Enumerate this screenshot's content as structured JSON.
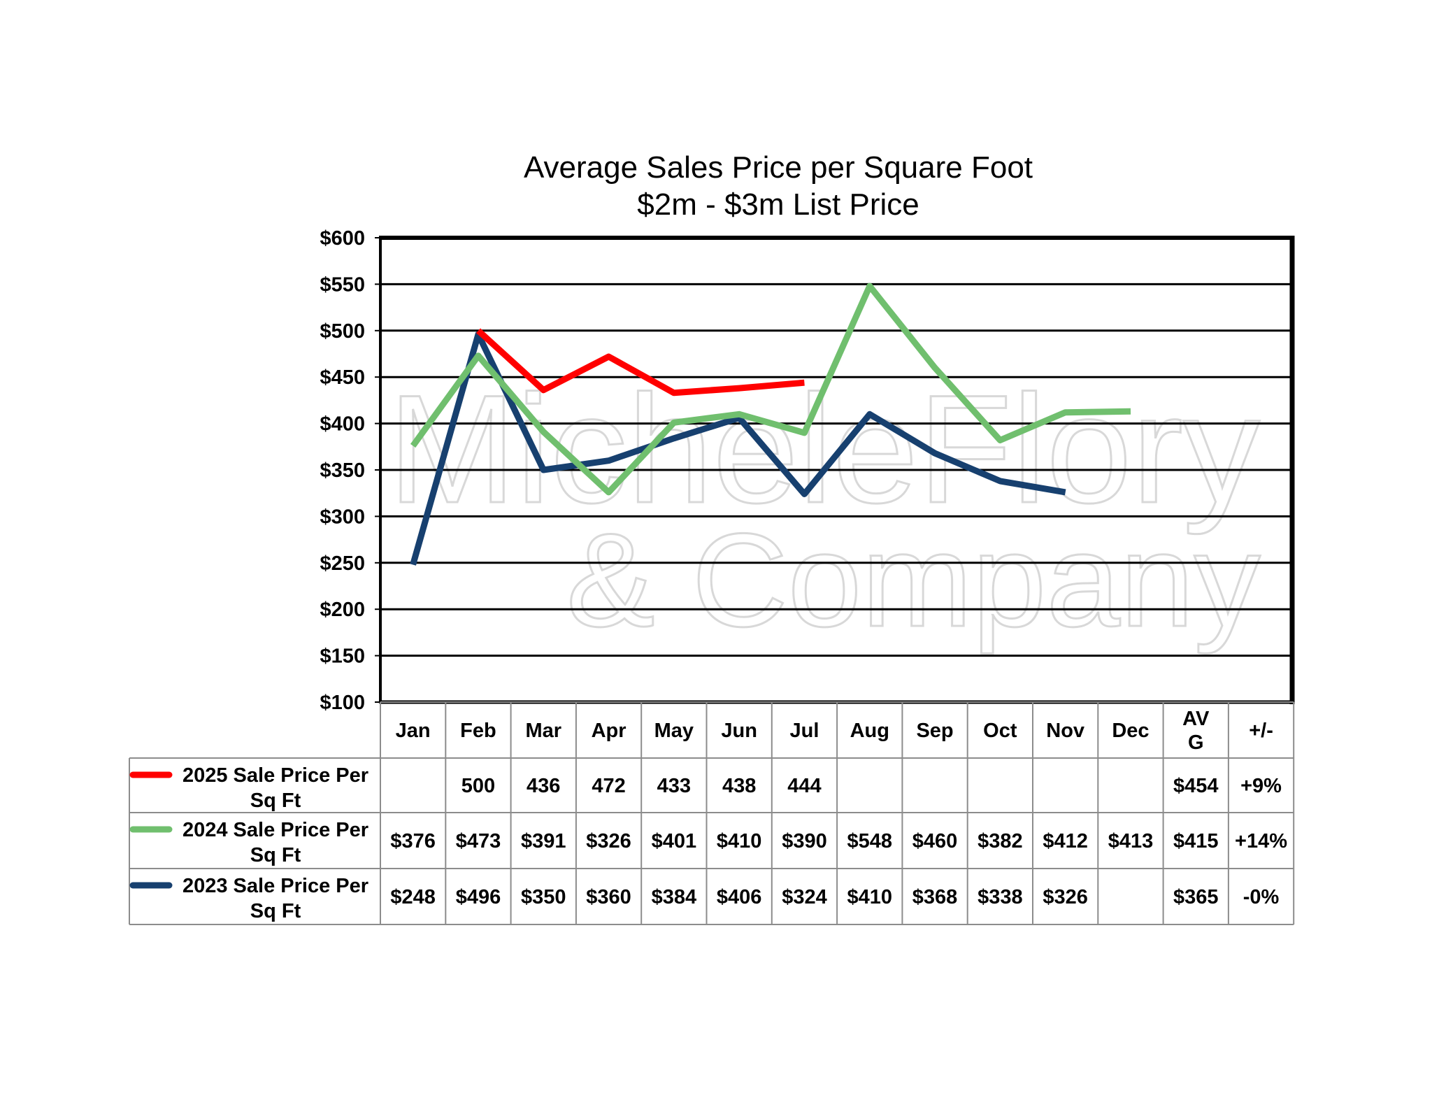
{
  "watermark": {
    "line1": "MicheleFlory",
    "line2": "& Company"
  },
  "chart_data": {
    "type": "line",
    "title": [
      "Average Sales Price per Square Foot",
      "$2m - $3m List Price"
    ],
    "ylim": [
      100,
      600
    ],
    "ytick_step": 50,
    "ytick_labels": [
      "$100",
      "$150",
      "$200",
      "$250",
      "$300",
      "$350",
      "$400",
      "$450",
      "$500",
      "$550",
      "$600"
    ],
    "grid": true,
    "categories": [
      "Jan",
      "Feb",
      "Mar",
      "Apr",
      "May",
      "Jun",
      "Jul",
      "Aug",
      "Sep",
      "Oct",
      "Nov",
      "Dec"
    ],
    "table_header_extra": [
      "AV\nG",
      "+/-"
    ],
    "series": [
      {
        "name": "2025 Sale Price Per Sq Ft",
        "color": "#ff0000",
        "values": [
          null,
          500,
          436,
          472,
          433,
          438,
          444,
          null,
          null,
          null,
          null,
          null
        ],
        "cells": [
          "",
          "500",
          "436",
          "472",
          "433",
          "438",
          "444",
          "",
          "",
          "",
          "",
          ""
        ],
        "avg": "$454",
        "change": "+9%"
      },
      {
        "name": "2024 Sale Price Per Sq Ft",
        "color": "#70bf6e",
        "values": [
          376,
          473,
          391,
          326,
          401,
          410,
          390,
          548,
          460,
          382,
          412,
          413
        ],
        "cells": [
          "$376",
          "$473",
          "$391",
          "$326",
          "$401",
          "$410",
          "$390",
          "$548",
          "$460",
          "$382",
          "$412",
          "$413"
        ],
        "avg": "$415",
        "change": "+14%"
      },
      {
        "name": "2023 Sale Price Per Sq Ft",
        "color": "#17406f",
        "values": [
          248,
          496,
          350,
          360,
          384,
          406,
          324,
          410,
          368,
          338,
          326,
          null
        ],
        "cells": [
          "$248",
          "$496",
          "$350",
          "$360",
          "$384",
          "$406",
          "$324",
          "$410",
          "$368",
          "$338",
          "$326",
          ""
        ],
        "avg": "$365",
        "change": "-0%"
      }
    ]
  }
}
